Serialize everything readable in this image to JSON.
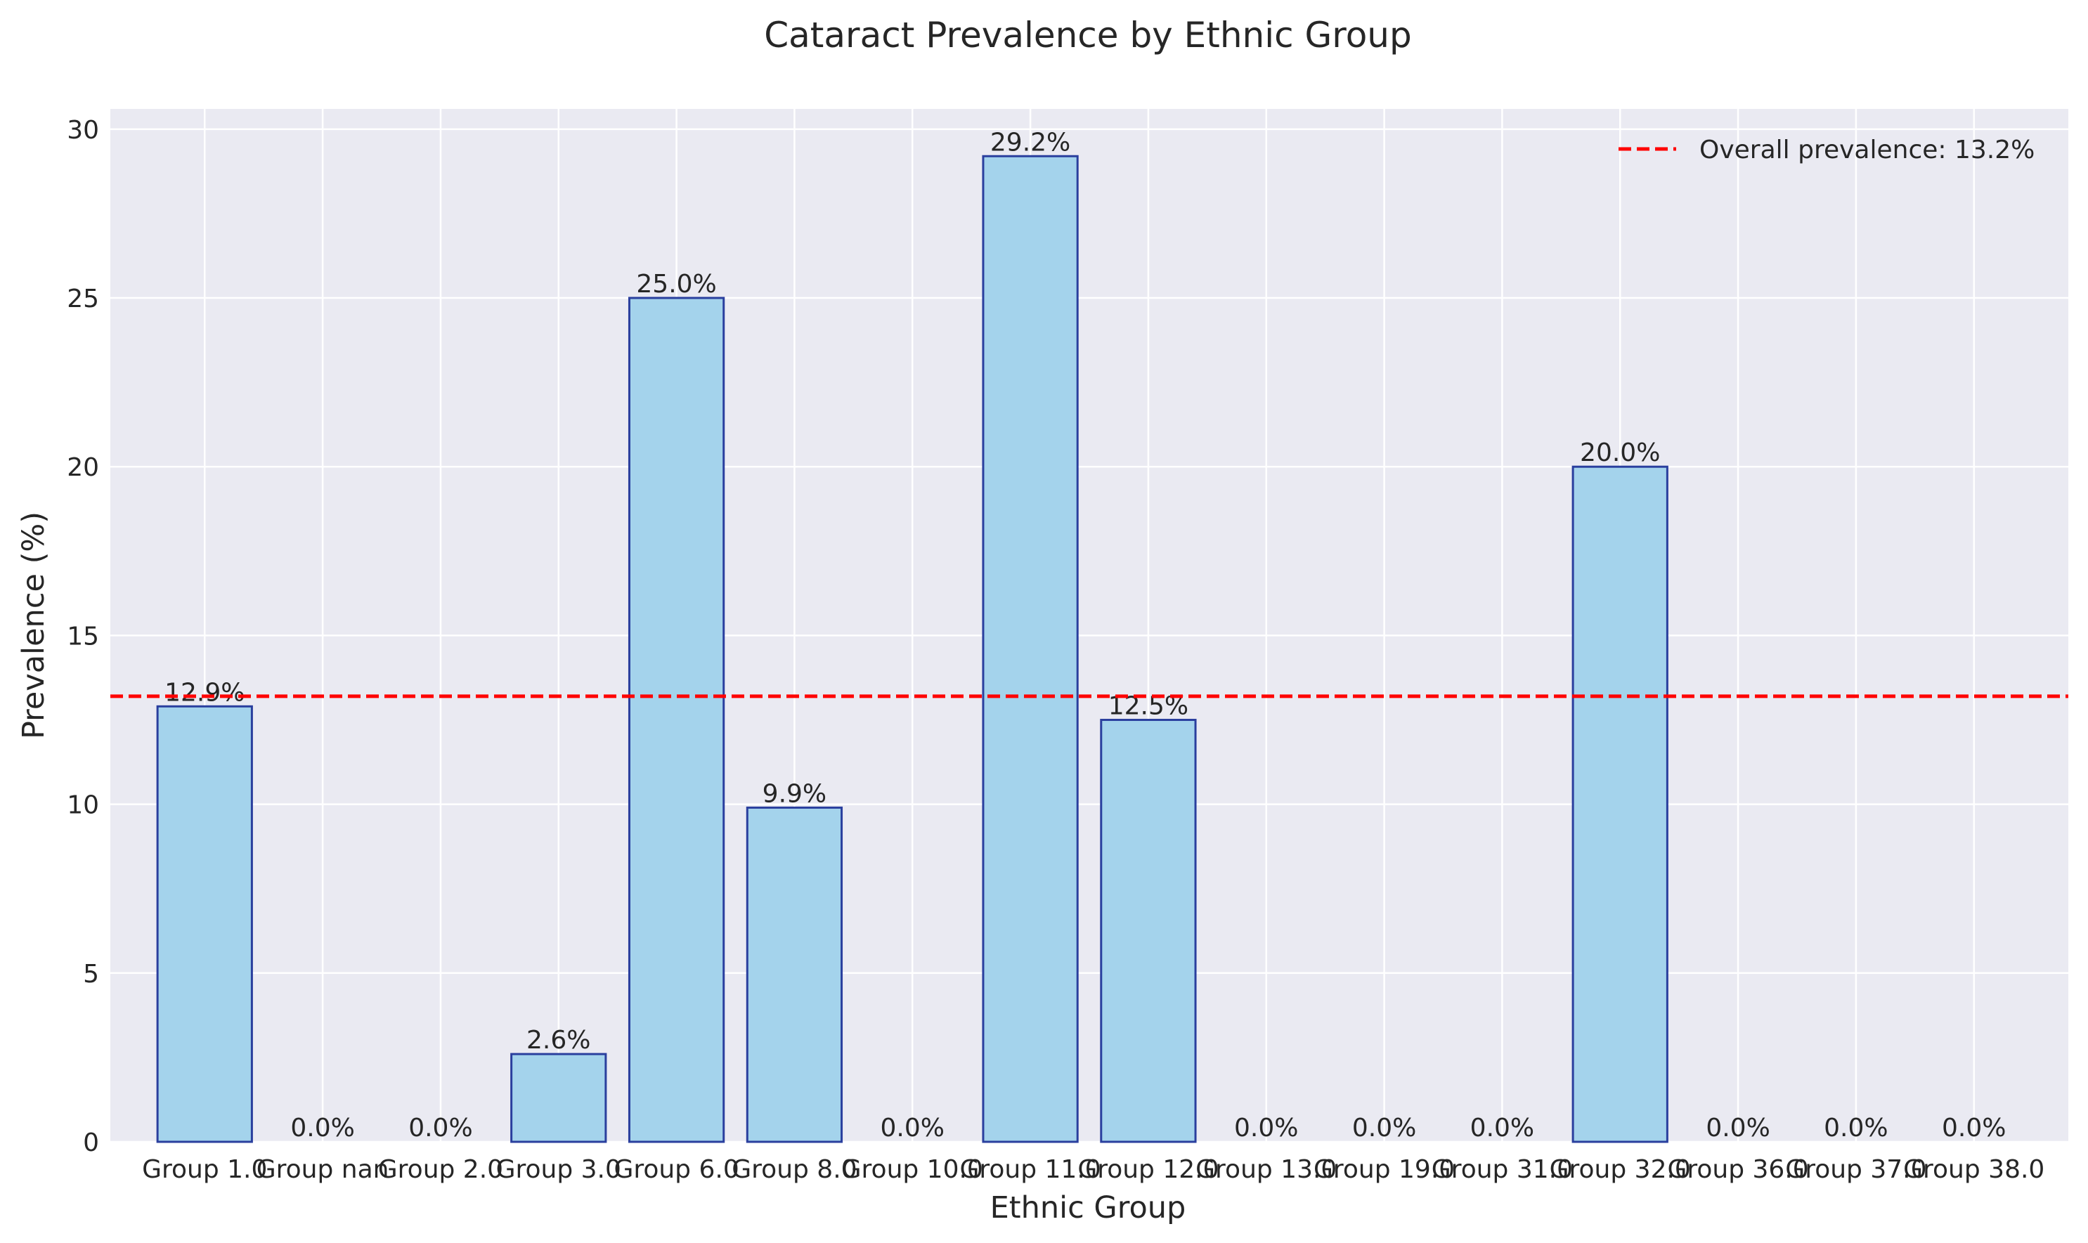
{
  "chart_data": {
    "type": "bar",
    "title": "Cataract Prevalence by Ethnic Group",
    "xlabel": "Ethnic Group",
    "ylabel": "Prevalence (%)",
    "ylim": [
      0,
      30.6
    ],
    "yticks": [
      0,
      5,
      10,
      15,
      20,
      25,
      30
    ],
    "ytick_labels": [
      "0",
      "5",
      "10",
      "15",
      "20",
      "25",
      "30"
    ],
    "grid": true,
    "categories": [
      "Group 1.0",
      "Group nan",
      "Group 2.0",
      "Group 3.0",
      "Group 6.0",
      "Group 8.0",
      "Group 10.0",
      "Group 11.0",
      "Group 12.0",
      "Group 13.0",
      "Group 19.0",
      "Group 31.0",
      "Group 32.0",
      "Group 36.0",
      "Group 37.0",
      "Group 38.0"
    ],
    "values": [
      12.9,
      0.0,
      0.0,
      2.6,
      25.0,
      9.9,
      0.0,
      29.2,
      12.5,
      0.0,
      0.0,
      0.0,
      20.0,
      0.0,
      0.0,
      0.0
    ],
    "value_labels": [
      "12.9%",
      "0.0%",
      "0.0%",
      "2.6%",
      "25.0%",
      "9.9%",
      "0.0%",
      "29.2%",
      "12.5%",
      "0.0%",
      "0.0%",
      "0.0%",
      "20.0%",
      "0.0%",
      "0.0%",
      "0.0%"
    ],
    "reference_line": {
      "value": 13.2,
      "label": "Overall prevalence: 13.2%",
      "color": "#ff0000",
      "style": "dashed"
    },
    "legend_position": "upper right",
    "colors": {
      "bar_fill": "#a4d3ec",
      "bar_edge": "#2a3f9e",
      "plot_background": "#eaeaf2",
      "grid": "#ffffff"
    }
  }
}
